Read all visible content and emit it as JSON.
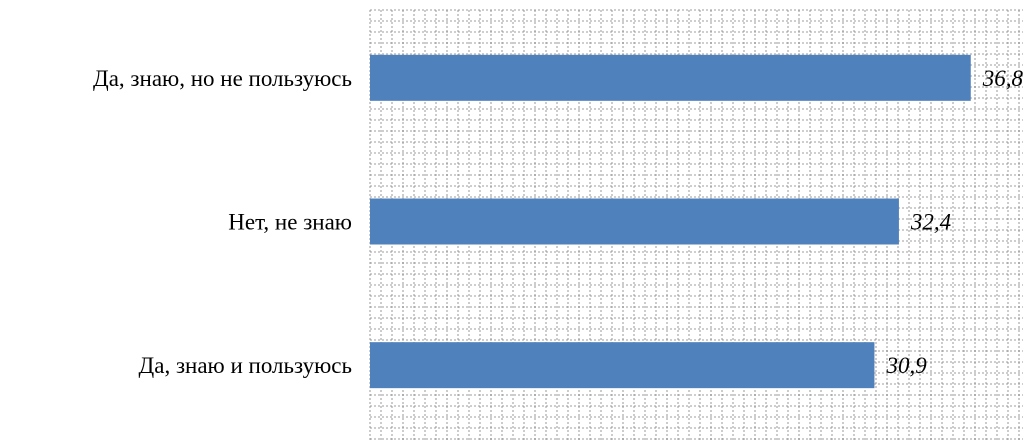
{
  "chart_data": {
    "type": "bar",
    "orientation": "horizontal",
    "categories": [
      "Да, знаю, но не пользуюсь",
      "Нет, не знаю",
      "Да, знаю и пользуюсь"
    ],
    "values": [
      36.8,
      32.4,
      30.9
    ],
    "value_labels": [
      "36,8",
      "32,4",
      "30,9"
    ],
    "title": "",
    "xlabel": "",
    "ylabel": "",
    "xlim": [
      0,
      40
    ],
    "grid": true,
    "legend": "none",
    "bar_color": "#4f81bd"
  }
}
